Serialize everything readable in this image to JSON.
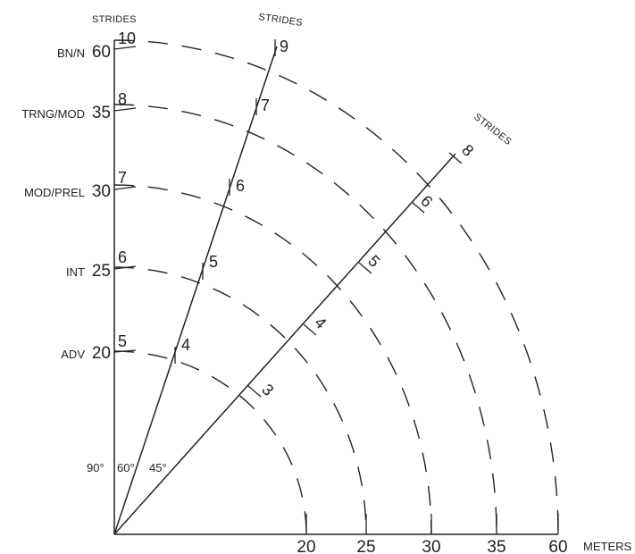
{
  "headers": {
    "top_left": "STRIDES",
    "top_mid": "STRIDES",
    "right": "STRIDES"
  },
  "vertical_axis": [
    {
      "name": "BN/N",
      "distance": "60",
      "strides": "10"
    },
    {
      "name": "TRNG/MOD",
      "distance": "35",
      "strides": "8"
    },
    {
      "name": "MOD/PREL",
      "distance": "30",
      "strides": "7"
    },
    {
      "name": "INT",
      "distance": "25",
      "strides": "6"
    },
    {
      "name": "ADV",
      "distance": "20",
      "strides": "5"
    }
  ],
  "angles": [
    "90°",
    "60°",
    "45°"
  ],
  "line_60_strides": [
    "4",
    "5",
    "6",
    "7",
    "9"
  ],
  "line_45_strides": [
    "3",
    "4",
    "5",
    "6",
    "8"
  ],
  "x_axis": {
    "ticks": [
      "20",
      "25",
      "30",
      "35",
      "60"
    ],
    "unit": "METERS"
  },
  "colors": {
    "ink": "#222222",
    "background": "#ffffff"
  }
}
